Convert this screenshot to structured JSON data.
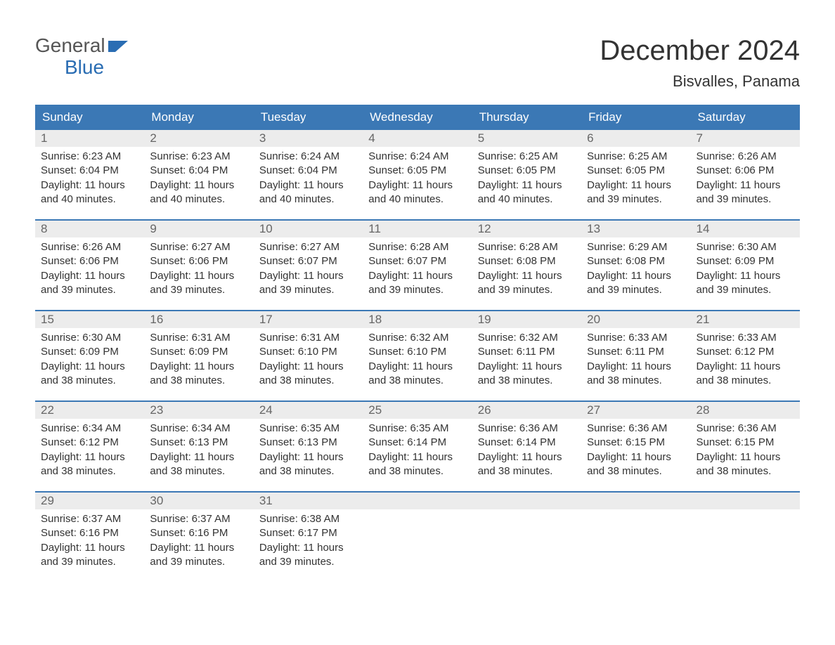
{
  "logo": {
    "text_general": "General",
    "text_blue": "Blue",
    "color_general": "#555555",
    "color_blue": "#2a6db3",
    "flag_color": "#2a6db3"
  },
  "title": "December 2024",
  "location": "Bisvalles, Panama",
  "colors": {
    "header_bg": "#3b78b5",
    "header_text": "#ffffff",
    "daynum_bg": "#ececec",
    "daynum_text": "#666666",
    "body_text": "#333333",
    "row_border": "#3b78b5",
    "page_bg": "#ffffff"
  },
  "day_headers": [
    "Sunday",
    "Monday",
    "Tuesday",
    "Wednesday",
    "Thursday",
    "Friday",
    "Saturday"
  ],
  "weeks": [
    [
      {
        "n": "1",
        "sunrise": "Sunrise: 6:23 AM",
        "sunset": "Sunset: 6:04 PM",
        "dl1": "Daylight: 11 hours",
        "dl2": "and 40 minutes."
      },
      {
        "n": "2",
        "sunrise": "Sunrise: 6:23 AM",
        "sunset": "Sunset: 6:04 PM",
        "dl1": "Daylight: 11 hours",
        "dl2": "and 40 minutes."
      },
      {
        "n": "3",
        "sunrise": "Sunrise: 6:24 AM",
        "sunset": "Sunset: 6:04 PM",
        "dl1": "Daylight: 11 hours",
        "dl2": "and 40 minutes."
      },
      {
        "n": "4",
        "sunrise": "Sunrise: 6:24 AM",
        "sunset": "Sunset: 6:05 PM",
        "dl1": "Daylight: 11 hours",
        "dl2": "and 40 minutes."
      },
      {
        "n": "5",
        "sunrise": "Sunrise: 6:25 AM",
        "sunset": "Sunset: 6:05 PM",
        "dl1": "Daylight: 11 hours",
        "dl2": "and 40 minutes."
      },
      {
        "n": "6",
        "sunrise": "Sunrise: 6:25 AM",
        "sunset": "Sunset: 6:05 PM",
        "dl1": "Daylight: 11 hours",
        "dl2": "and 39 minutes."
      },
      {
        "n": "7",
        "sunrise": "Sunrise: 6:26 AM",
        "sunset": "Sunset: 6:06 PM",
        "dl1": "Daylight: 11 hours",
        "dl2": "and 39 minutes."
      }
    ],
    [
      {
        "n": "8",
        "sunrise": "Sunrise: 6:26 AM",
        "sunset": "Sunset: 6:06 PM",
        "dl1": "Daylight: 11 hours",
        "dl2": "and 39 minutes."
      },
      {
        "n": "9",
        "sunrise": "Sunrise: 6:27 AM",
        "sunset": "Sunset: 6:06 PM",
        "dl1": "Daylight: 11 hours",
        "dl2": "and 39 minutes."
      },
      {
        "n": "10",
        "sunrise": "Sunrise: 6:27 AM",
        "sunset": "Sunset: 6:07 PM",
        "dl1": "Daylight: 11 hours",
        "dl2": "and 39 minutes."
      },
      {
        "n": "11",
        "sunrise": "Sunrise: 6:28 AM",
        "sunset": "Sunset: 6:07 PM",
        "dl1": "Daylight: 11 hours",
        "dl2": "and 39 minutes."
      },
      {
        "n": "12",
        "sunrise": "Sunrise: 6:28 AM",
        "sunset": "Sunset: 6:08 PM",
        "dl1": "Daylight: 11 hours",
        "dl2": "and 39 minutes."
      },
      {
        "n": "13",
        "sunrise": "Sunrise: 6:29 AM",
        "sunset": "Sunset: 6:08 PM",
        "dl1": "Daylight: 11 hours",
        "dl2": "and 39 minutes."
      },
      {
        "n": "14",
        "sunrise": "Sunrise: 6:30 AM",
        "sunset": "Sunset: 6:09 PM",
        "dl1": "Daylight: 11 hours",
        "dl2": "and 39 minutes."
      }
    ],
    [
      {
        "n": "15",
        "sunrise": "Sunrise: 6:30 AM",
        "sunset": "Sunset: 6:09 PM",
        "dl1": "Daylight: 11 hours",
        "dl2": "and 38 minutes."
      },
      {
        "n": "16",
        "sunrise": "Sunrise: 6:31 AM",
        "sunset": "Sunset: 6:09 PM",
        "dl1": "Daylight: 11 hours",
        "dl2": "and 38 minutes."
      },
      {
        "n": "17",
        "sunrise": "Sunrise: 6:31 AM",
        "sunset": "Sunset: 6:10 PM",
        "dl1": "Daylight: 11 hours",
        "dl2": "and 38 minutes."
      },
      {
        "n": "18",
        "sunrise": "Sunrise: 6:32 AM",
        "sunset": "Sunset: 6:10 PM",
        "dl1": "Daylight: 11 hours",
        "dl2": "and 38 minutes."
      },
      {
        "n": "19",
        "sunrise": "Sunrise: 6:32 AM",
        "sunset": "Sunset: 6:11 PM",
        "dl1": "Daylight: 11 hours",
        "dl2": "and 38 minutes."
      },
      {
        "n": "20",
        "sunrise": "Sunrise: 6:33 AM",
        "sunset": "Sunset: 6:11 PM",
        "dl1": "Daylight: 11 hours",
        "dl2": "and 38 minutes."
      },
      {
        "n": "21",
        "sunrise": "Sunrise: 6:33 AM",
        "sunset": "Sunset: 6:12 PM",
        "dl1": "Daylight: 11 hours",
        "dl2": "and 38 minutes."
      }
    ],
    [
      {
        "n": "22",
        "sunrise": "Sunrise: 6:34 AM",
        "sunset": "Sunset: 6:12 PM",
        "dl1": "Daylight: 11 hours",
        "dl2": "and 38 minutes."
      },
      {
        "n": "23",
        "sunrise": "Sunrise: 6:34 AM",
        "sunset": "Sunset: 6:13 PM",
        "dl1": "Daylight: 11 hours",
        "dl2": "and 38 minutes."
      },
      {
        "n": "24",
        "sunrise": "Sunrise: 6:35 AM",
        "sunset": "Sunset: 6:13 PM",
        "dl1": "Daylight: 11 hours",
        "dl2": "and 38 minutes."
      },
      {
        "n": "25",
        "sunrise": "Sunrise: 6:35 AM",
        "sunset": "Sunset: 6:14 PM",
        "dl1": "Daylight: 11 hours",
        "dl2": "and 38 minutes."
      },
      {
        "n": "26",
        "sunrise": "Sunrise: 6:36 AM",
        "sunset": "Sunset: 6:14 PM",
        "dl1": "Daylight: 11 hours",
        "dl2": "and 38 minutes."
      },
      {
        "n": "27",
        "sunrise": "Sunrise: 6:36 AM",
        "sunset": "Sunset: 6:15 PM",
        "dl1": "Daylight: 11 hours",
        "dl2": "and 38 minutes."
      },
      {
        "n": "28",
        "sunrise": "Sunrise: 6:36 AM",
        "sunset": "Sunset: 6:15 PM",
        "dl1": "Daylight: 11 hours",
        "dl2": "and 38 minutes."
      }
    ],
    [
      {
        "n": "29",
        "sunrise": "Sunrise: 6:37 AM",
        "sunset": "Sunset: 6:16 PM",
        "dl1": "Daylight: 11 hours",
        "dl2": "and 39 minutes."
      },
      {
        "n": "30",
        "sunrise": "Sunrise: 6:37 AM",
        "sunset": "Sunset: 6:16 PM",
        "dl1": "Daylight: 11 hours",
        "dl2": "and 39 minutes."
      },
      {
        "n": "31",
        "sunrise": "Sunrise: 6:38 AM",
        "sunset": "Sunset: 6:17 PM",
        "dl1": "Daylight: 11 hours",
        "dl2": "and 39 minutes."
      },
      {
        "empty": true
      },
      {
        "empty": true
      },
      {
        "empty": true
      },
      {
        "empty": true
      }
    ]
  ]
}
